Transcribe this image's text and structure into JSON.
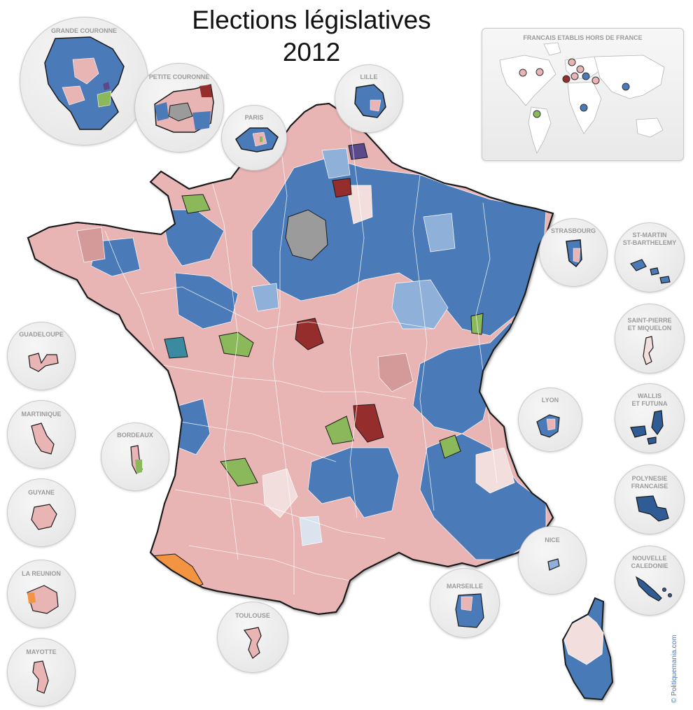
{
  "title": {
    "line1": "Elections législatives",
    "line2": "2012"
  },
  "world_inset": {
    "label": "FRANCAIS ETABLIS HORS DE FRANCE"
  },
  "insets": {
    "grande_couronne": "GRANDE COURONNE",
    "petite_couronne": "PETITE COURONNE",
    "paris": "PARIS",
    "lille": "LILLE",
    "strasbourg": "STRASBOURG",
    "st_martin": [
      "ST-MARTIN",
      "ST-BARTHELEMY"
    ],
    "saint_pierre": [
      "SAINT-PIERRE",
      "ET MIQUELON"
    ],
    "wallis": [
      "WALLIS",
      "ET FUTUNA"
    ],
    "polynesie": [
      "POLYNESIE",
      "FRANCAISE"
    ],
    "nouvelle_caledonie": [
      "NOUVELLE",
      "CALEDONIE"
    ],
    "lyon": "LYON",
    "nice": "NICE",
    "marseille": "MARSEILLE",
    "toulouse": "TOULOUSE",
    "bordeaux": "BORDEAUX",
    "guadeloupe": "GUADELOUPE",
    "martinique": "MARTINIQUE",
    "guyane": "GUYANE",
    "la_reunion": "LA REUNION",
    "mayotte": "MAYOTTE"
  },
  "credit": "© Politiquemania.com",
  "colors": {
    "left_strong": "#e8b4b4",
    "left_light": "#f3dede",
    "left_mid": "#d49a9a",
    "right_strong": "#4a7ab8",
    "right_light": "#8fb0d8",
    "right_dark": "#2f5c95",
    "far_left": "#962d2d",
    "ecology": "#8ab85a",
    "centre": "#f39442",
    "regionalist": "#3a8aa0",
    "far_right": "#5a4a8a",
    "other": "#9b9b9b",
    "border": "#1a1a1a"
  },
  "world_markers": [
    {
      "color": "pink"
    },
    {
      "color": "pink"
    },
    {
      "color": "pink"
    },
    {
      "color": "pink"
    },
    {
      "color": "blue"
    },
    {
      "color": "blue"
    },
    {
      "color": "blue"
    },
    {
      "color": "blue"
    },
    {
      "color": "green"
    },
    {
      "color": "pink"
    }
  ]
}
